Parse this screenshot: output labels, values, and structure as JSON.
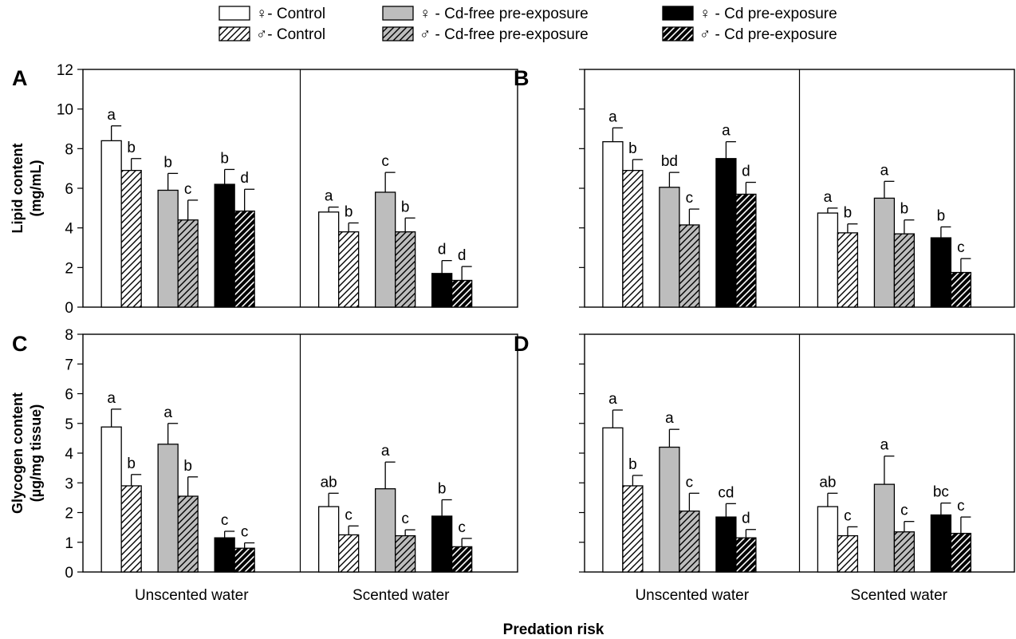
{
  "legend": {
    "items": [
      {
        "label": "♀- Control",
        "series": "female_control"
      },
      {
        "label": "♂- Control",
        "series": "male_control"
      },
      {
        "label": "♀ - Cd-free pre-exposure",
        "series": "female_cdfree"
      },
      {
        "label": "♂ - Cd-free pre-exposure",
        "series": "male_cdfree"
      },
      {
        "label": "♀ - Cd pre-exposure",
        "series": "female_cd"
      },
      {
        "label": "♂ - Cd pre-exposure",
        "series": "male_cd"
      }
    ]
  },
  "xlabel": "Predation risk",
  "colors": {
    "control": "#ffffff",
    "cdfree": "#bdbdbd",
    "cd": "#000000",
    "stroke": "#000000"
  },
  "chart_data": [
    {
      "panel": "A",
      "type": "bar",
      "categories": [
        "Unscented water",
        "Scented water"
      ],
      "ylabel": "Lipid content (mg/mL)",
      "ylim": [
        0,
        12
      ],
      "yticks": [
        "0",
        "2",
        "4",
        "6",
        "8",
        "10",
        "12"
      ],
      "show_tick_labels": true,
      "series": [
        {
          "key": "female_control",
          "values": [
            8.4,
            4.8
          ],
          "errors": [
            0.75,
            0.25
          ],
          "letters": [
            "a",
            "a"
          ]
        },
        {
          "key": "male_control",
          "values": [
            6.9,
            3.8
          ],
          "errors": [
            0.6,
            0.45
          ],
          "letters": [
            "b",
            "b"
          ]
        },
        {
          "key": "female_cdfree",
          "values": [
            5.9,
            5.8
          ],
          "errors": [
            0.85,
            1.0
          ],
          "letters": [
            "b",
            "c"
          ]
        },
        {
          "key": "male_cdfree",
          "values": [
            4.4,
            3.8
          ],
          "errors": [
            1.0,
            0.7
          ],
          "letters": [
            "c",
            "b"
          ]
        },
        {
          "key": "female_cd",
          "values": [
            6.2,
            1.7
          ],
          "errors": [
            0.75,
            0.65
          ],
          "letters": [
            "b",
            "d"
          ]
        },
        {
          "key": "male_cd",
          "values": [
            4.85,
            1.35
          ],
          "errors": [
            1.1,
            0.7
          ],
          "letters": [
            "d",
            "d"
          ]
        }
      ]
    },
    {
      "panel": "B",
      "type": "bar",
      "categories": [
        "Unscented water",
        "Scented water"
      ],
      "ylabel": "",
      "ylim": [
        0,
        12
      ],
      "yticks": [
        "0",
        "2",
        "4",
        "6",
        "8",
        "10",
        "12"
      ],
      "show_tick_labels": false,
      "series": [
        {
          "key": "female_control",
          "values": [
            8.35,
            4.75
          ],
          "errors": [
            0.7,
            0.25
          ],
          "letters": [
            "a",
            "a"
          ]
        },
        {
          "key": "male_control",
          "values": [
            6.9,
            3.75
          ],
          "errors": [
            0.55,
            0.45
          ],
          "letters": [
            "b",
            "b"
          ]
        },
        {
          "key": "female_cdfree",
          "values": [
            6.05,
            5.5
          ],
          "errors": [
            0.75,
            0.85
          ],
          "letters": [
            "bd",
            "a"
          ]
        },
        {
          "key": "male_cdfree",
          "values": [
            4.15,
            3.7
          ],
          "errors": [
            0.8,
            0.7
          ],
          "letters": [
            "c",
            "b"
          ]
        },
        {
          "key": "female_cd",
          "values": [
            7.5,
            3.5
          ],
          "errors": [
            0.85,
            0.55
          ],
          "letters": [
            "a",
            "b"
          ]
        },
        {
          "key": "male_cd",
          "values": [
            5.7,
            1.75
          ],
          "errors": [
            0.6,
            0.7
          ],
          "letters": [
            "d",
            "c"
          ]
        }
      ]
    },
    {
      "panel": "C",
      "type": "bar",
      "categories": [
        "Unscented water",
        "Scented water"
      ],
      "ylabel": "Glycogen content (µg/mg tissue)",
      "ylim": [
        0,
        8
      ],
      "yticks": [
        "0",
        "1",
        "2",
        "3",
        "4",
        "5",
        "6",
        "7",
        "8"
      ],
      "show_tick_labels": true,
      "series": [
        {
          "key": "female_control",
          "values": [
            4.88,
            2.2
          ],
          "errors": [
            0.6,
            0.45
          ],
          "letters": [
            "a",
            "ab"
          ]
        },
        {
          "key": "male_control",
          "values": [
            2.9,
            1.25
          ],
          "errors": [
            0.38,
            0.3
          ],
          "letters": [
            "b",
            "c"
          ]
        },
        {
          "key": "female_cdfree",
          "values": [
            4.3,
            2.8
          ],
          "errors": [
            0.7,
            0.9
          ],
          "letters": [
            "a",
            "a"
          ]
        },
        {
          "key": "male_cdfree",
          "values": [
            2.55,
            1.22
          ],
          "errors": [
            0.65,
            0.2
          ],
          "letters": [
            "b",
            "c"
          ]
        },
        {
          "key": "female_cd",
          "values": [
            1.15,
            1.88
          ],
          "errors": [
            0.22,
            0.55
          ],
          "letters": [
            "c",
            "b"
          ]
        },
        {
          "key": "male_cd",
          "values": [
            0.8,
            0.85
          ],
          "errors": [
            0.18,
            0.28
          ],
          "letters": [
            "c",
            "c"
          ]
        }
      ]
    },
    {
      "panel": "D",
      "type": "bar",
      "categories": [
        "Unscented water",
        "Scented water"
      ],
      "ylabel": "",
      "ylim": [
        0,
        8
      ],
      "yticks": [
        "0",
        "1",
        "2",
        "3",
        "4",
        "5",
        "6",
        "7",
        "8"
      ],
      "show_tick_labels": false,
      "series": [
        {
          "key": "female_control",
          "values": [
            4.85,
            2.2
          ],
          "errors": [
            0.6,
            0.45
          ],
          "letters": [
            "a",
            "ab"
          ]
        },
        {
          "key": "male_control",
          "values": [
            2.9,
            1.22
          ],
          "errors": [
            0.35,
            0.3
          ],
          "letters": [
            "b",
            "c"
          ]
        },
        {
          "key": "female_cdfree",
          "values": [
            4.2,
            2.95
          ],
          "errors": [
            0.6,
            0.95
          ],
          "letters": [
            "a",
            "a"
          ]
        },
        {
          "key": "male_cdfree",
          "values": [
            2.05,
            1.35
          ],
          "errors": [
            0.6,
            0.35
          ],
          "letters": [
            "c",
            "c"
          ]
        },
        {
          "key": "female_cd",
          "values": [
            1.85,
            1.92
          ],
          "errors": [
            0.45,
            0.4
          ],
          "letters": [
            "cd",
            "bc"
          ]
        },
        {
          "key": "male_cd",
          "values": [
            1.15,
            1.3
          ],
          "errors": [
            0.28,
            0.55
          ],
          "letters": [
            "d",
            "c"
          ]
        }
      ]
    }
  ]
}
